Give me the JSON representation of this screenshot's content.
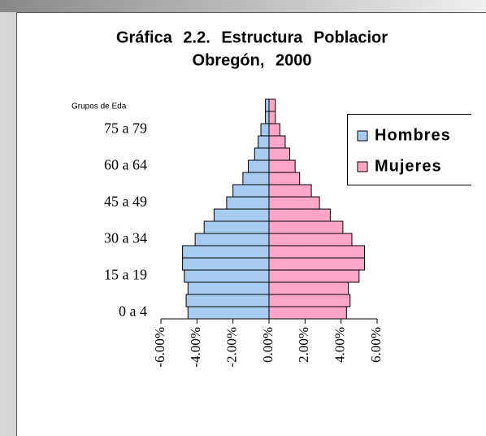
{
  "chart_data": {
    "type": "pyramid",
    "title": "Gráfica 2.2. Estructura Poblacior",
    "subtitle": "Obregón, 2000",
    "y_axis_label": "Grupos de Eda",
    "categories": [
      "0 a 4",
      null,
      null,
      "15 a 19",
      null,
      null,
      "30 a 34",
      null,
      null,
      "45 a 49",
      null,
      null,
      "60 a 64",
      null,
      null,
      "75 a 79",
      null,
      null
    ],
    "series": [
      {
        "name": "Hombres",
        "color": "#a6caf0",
        "values": [
          -4.5,
          -4.6,
          -4.5,
          -4.7,
          -4.8,
          -4.8,
          -4.1,
          -3.6,
          -3.05,
          -2.35,
          -2.0,
          -1.45,
          -1.15,
          -0.8,
          -0.6,
          -0.45,
          -0.2,
          -0.2
        ]
      },
      {
        "name": "Mujeres",
        "color": "#ffa6c9",
        "values": [
          4.3,
          4.5,
          4.4,
          5.0,
          5.3,
          5.3,
          4.6,
          4.1,
          3.4,
          2.8,
          2.35,
          1.7,
          1.45,
          1.15,
          0.9,
          0.6,
          0.35,
          0.35
        ]
      }
    ],
    "xlim": [
      -6,
      6
    ],
    "xticks": [
      {
        "value": -6,
        "label": "-6.00%"
      },
      {
        "value": -4,
        "label": "-4.00%"
      },
      {
        "value": -2,
        "label": "-2.00%"
      },
      {
        "value": 0,
        "label": "0.00%"
      },
      {
        "value": 2,
        "label": "2.00%"
      },
      {
        "value": 4,
        "label": "4.00%"
      },
      {
        "value": 6,
        "label": "6.00%"
      }
    ],
    "legend": "right"
  }
}
